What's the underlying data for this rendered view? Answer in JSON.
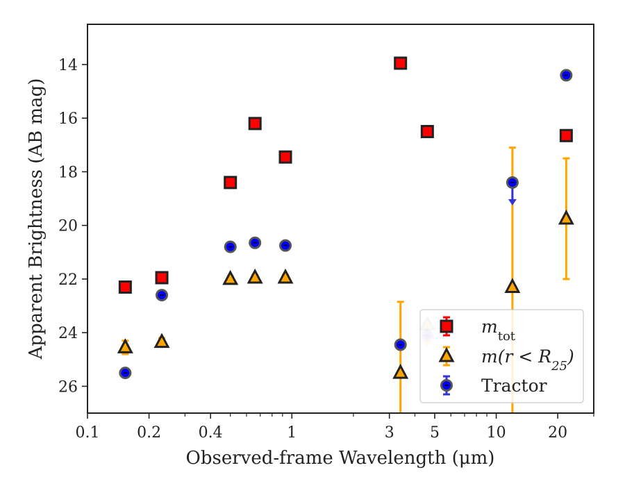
{
  "chart_data": {
    "type": "scatter",
    "xlabel": "Observed-frame Wavelength (μm)",
    "ylabel": "Apparent Brightness (AB mag)",
    "x_scale": "log",
    "xlim": [
      0.1,
      30
    ],
    "ylim": [
      27,
      12.5
    ],
    "y_inverted": true,
    "x_ticks": [
      0.1,
      0.2,
      0.4,
      1,
      3,
      5,
      10,
      20
    ],
    "x_tick_labels": [
      "0.1",
      "0.2",
      "0.4",
      "1",
      "3",
      "5",
      "10",
      "20"
    ],
    "y_ticks": [
      14,
      16,
      18,
      20,
      22,
      24,
      26
    ],
    "y_tick_labels": [
      "14",
      "16",
      "18",
      "20",
      "22",
      "24",
      "26"
    ],
    "grid": false,
    "legend_position": "lower right",
    "series": [
      {
        "name": "m_tot",
        "legend_math": {
          "base": "m",
          "sub": "tot"
        },
        "marker": "square",
        "fill": "#ff0000",
        "edge": "#222222",
        "errcolor": "#ff0000",
        "points": [
          {
            "x": 0.153,
            "y": 22.3
          },
          {
            "x": 0.231,
            "y": 21.95
          },
          {
            "x": 0.5,
            "y": 18.4
          },
          {
            "x": 0.66,
            "y": 16.2
          },
          {
            "x": 0.93,
            "y": 17.45
          },
          {
            "x": 3.4,
            "y": 13.95
          },
          {
            "x": 4.6,
            "y": 16.5
          },
          {
            "x": 22.0,
            "y": 16.65
          }
        ]
      },
      {
        "name": "m(r < R25)",
        "legend_math": {
          "base": "m(r < R",
          "sub": "25",
          "tail": ")"
        },
        "marker": "triangle",
        "fill": "#ffa500",
        "edge": "#222222",
        "errcolor": "#ffa500",
        "points": [
          {
            "x": 0.153,
            "y": 24.55,
            "yerr": [
              0.25,
              0.25
            ]
          },
          {
            "x": 0.231,
            "y": 24.35,
            "yerr": [
              0.15,
              0.15
            ]
          },
          {
            "x": 0.5,
            "y": 22.0,
            "yerr": [
              0.1,
              0.1
            ]
          },
          {
            "x": 0.66,
            "y": 21.95,
            "yerr": [
              0.1,
              0.1
            ]
          },
          {
            "x": 0.93,
            "y": 21.95,
            "yerr": [
              0.1,
              0.1
            ]
          },
          {
            "x": 3.4,
            "y": 25.5,
            "yerr": [
              2.65,
              2.0
            ]
          },
          {
            "x": 4.6,
            "y": 23.7,
            "upper_limit": true,
            "faded": true
          },
          {
            "x": 12.0,
            "y": 22.3,
            "yerr": [
              5.2,
              4.8
            ]
          },
          {
            "x": 22.0,
            "y": 19.75,
            "yerr": [
              2.25,
              2.25
            ]
          }
        ]
      },
      {
        "name": "Tractor",
        "marker": "circle",
        "fill": "#0000ff",
        "edge": "#555555",
        "errcolor": "#3333dd",
        "points": [
          {
            "x": 0.153,
            "y": 25.5
          },
          {
            "x": 0.231,
            "y": 22.6
          },
          {
            "x": 0.5,
            "y": 20.8
          },
          {
            "x": 0.66,
            "y": 20.65
          },
          {
            "x": 0.93,
            "y": 20.75
          },
          {
            "x": 3.4,
            "y": 24.45
          },
          {
            "x": 4.6,
            "y": 24.1,
            "faded": true
          },
          {
            "x": 12.0,
            "y": 18.4,
            "upper_limit": true
          },
          {
            "x": 22.0,
            "y": 14.4
          }
        ]
      }
    ],
    "legend_tractor_label": "Tractor"
  }
}
